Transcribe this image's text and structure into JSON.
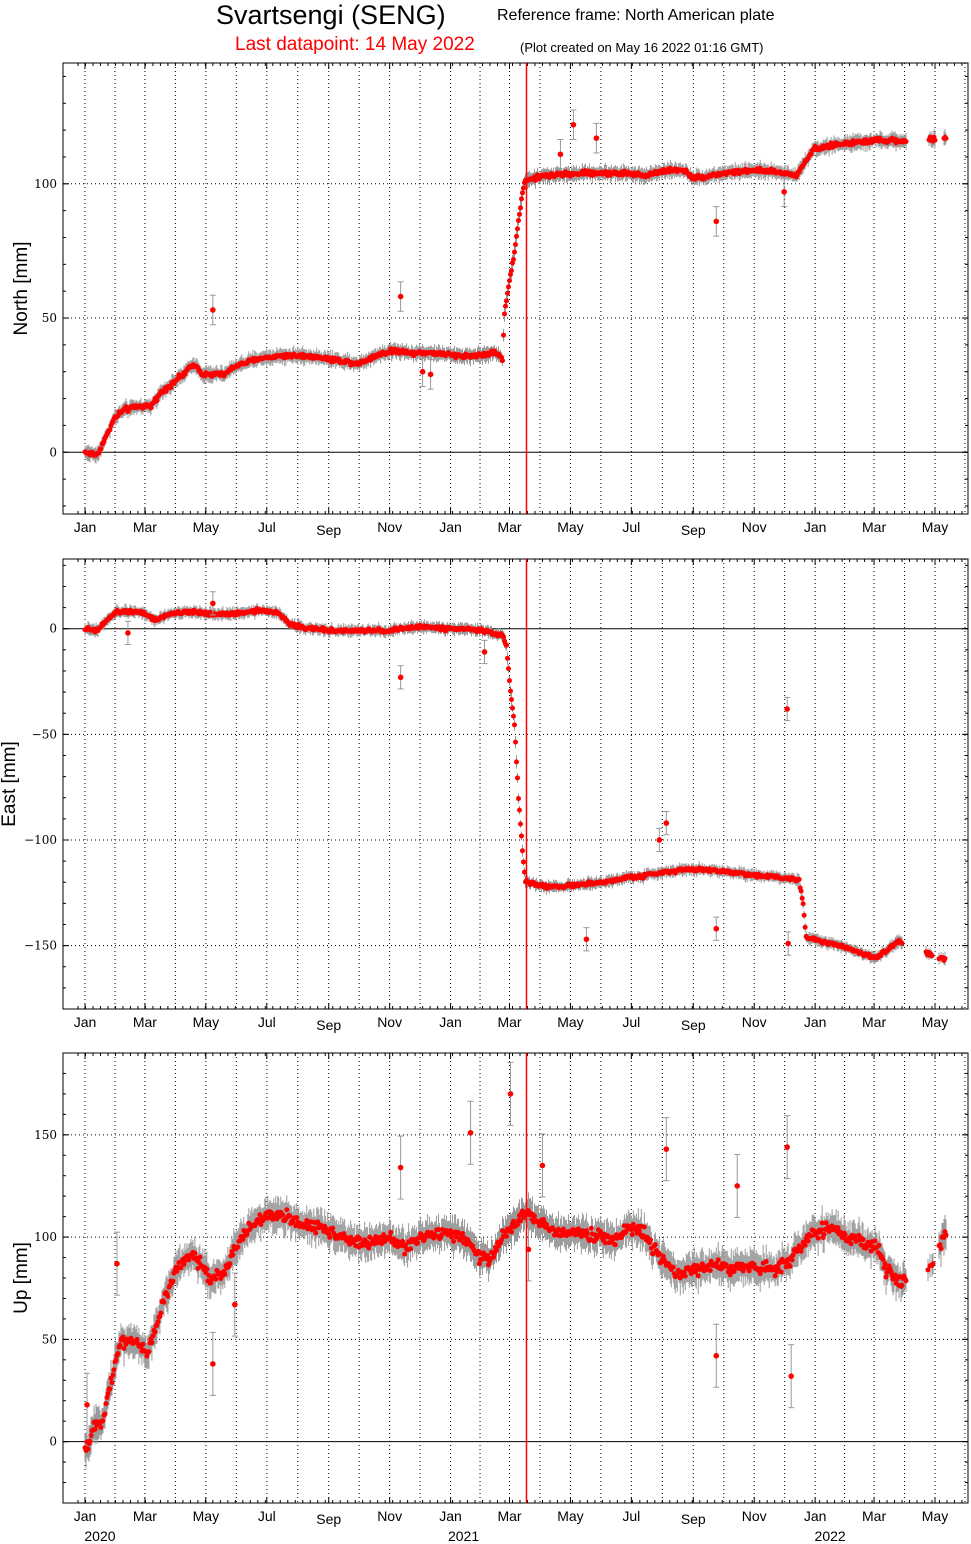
{
  "header": {
    "title": "Svartsengi (SENG)",
    "reference_frame": "Reference frame: North American plate",
    "last_datapoint": "Last datapoint: 14 May 2022",
    "created": "(Plot created on May 16 2022 01:16 GMT)"
  },
  "colors": {
    "points": "#ff0000",
    "error_bars": "#999999",
    "event_line": "#ff0000",
    "zero_line": "#000000",
    "grid": "#000000"
  },
  "chart_data": [
    {
      "type": "scatter",
      "name": "north",
      "ylabel": "North [mm]",
      "ylim": [
        -23,
        145
      ],
      "yticks": [
        0,
        50,
        100
      ],
      "ytick_labels": [
        "0",
        "50",
        "100"
      ],
      "x_unit": "days since 2020-01-01",
      "xlim": [
        -10,
        893
      ],
      "month_ticks": [
        {
          "label": "Jan",
          "day": 0
        },
        {
          "label": "Mar",
          "day": 60
        },
        {
          "label": "May",
          "day": 121
        },
        {
          "label": "Jul",
          "day": 182
        },
        {
          "label": "Sep",
          "day": 244
        },
        {
          "label": "Nov",
          "day": 305
        },
        {
          "label": "Jan",
          "day": 366
        },
        {
          "label": "Mar",
          "day": 425
        },
        {
          "label": "May",
          "day": 486
        },
        {
          "label": "Jul",
          "day": 547
        },
        {
          "label": "Sep",
          "day": 609
        },
        {
          "label": "Nov",
          "day": 670
        },
        {
          "label": "Jan",
          "day": 731
        },
        {
          "label": "Mar",
          "day": 790
        },
        {
          "label": "May",
          "day": 851
        }
      ],
      "event_line_day": 442,
      "trend": [
        [
          0,
          0
        ],
        [
          12,
          -1
        ],
        [
          20,
          5
        ],
        [
          30,
          13
        ],
        [
          40,
          16
        ],
        [
          55,
          17
        ],
        [
          66,
          17
        ],
        [
          75,
          22
        ],
        [
          95,
          28
        ],
        [
          110,
          33
        ],
        [
          118,
          29
        ],
        [
          140,
          29
        ],
        [
          150,
          32
        ],
        [
          175,
          35
        ],
        [
          200,
          36
        ],
        [
          220,
          36
        ],
        [
          240,
          35
        ],
        [
          258,
          34
        ],
        [
          275,
          33
        ],
        [
          290,
          36
        ],
        [
          310,
          38
        ],
        [
          330,
          37
        ],
        [
          350,
          37
        ],
        [
          370,
          36
        ],
        [
          390,
          36
        ],
        [
          410,
          37
        ],
        [
          418,
          35
        ],
        [
          420,
          52
        ],
        [
          424,
          62
        ],
        [
          428,
          70
        ],
        [
          432,
          80
        ],
        [
          436,
          92
        ],
        [
          440,
          101
        ],
        [
          460,
          103
        ],
        [
          500,
          104
        ],
        [
          540,
          104
        ],
        [
          560,
          103
        ],
        [
          580,
          105
        ],
        [
          600,
          105
        ],
        [
          610,
          102
        ],
        [
          640,
          104
        ],
        [
          670,
          105
        ],
        [
          700,
          104
        ],
        [
          712,
          103
        ],
        [
          720,
          108
        ],
        [
          730,
          113
        ],
        [
          760,
          115
        ],
        [
          790,
          116
        ],
        [
          800,
          116
        ],
        [
          820,
          116
        ],
        [
          860,
          117
        ],
        [
          870,
          118
        ]
      ],
      "gap_days": [
        [
          822,
          845
        ],
        [
          851,
          860
        ]
      ],
      "outliers": [
        {
          "day": 128,
          "y": 53
        },
        {
          "day": 316,
          "y": 58
        },
        {
          "day": 338,
          "y": 30
        },
        {
          "day": 476,
          "y": 111
        },
        {
          "day": 489,
          "y": 122
        },
        {
          "day": 512,
          "y": 117
        },
        {
          "day": 632,
          "y": 86
        },
        {
          "day": 700,
          "y": 97
        },
        {
          "day": 346,
          "y": 29
        }
      ]
    },
    {
      "type": "scatter",
      "name": "east",
      "ylabel": "East [mm]",
      "ylim": [
        -180,
        33
      ],
      "yticks": [
        -150,
        -100,
        -50,
        0
      ],
      "ytick_labels": [
        "−150",
        "−100",
        "−50",
        "0"
      ],
      "x_unit": "days since 2020-01-01",
      "xlim": [
        -10,
        893
      ],
      "month_ticks": [
        {
          "label": "Jan",
          "day": 0
        },
        {
          "label": "Mar",
          "day": 60
        },
        {
          "label": "May",
          "day": 121
        },
        {
          "label": "Jul",
          "day": 182
        },
        {
          "label": "Sep",
          "day": 244
        },
        {
          "label": "Nov",
          "day": 305
        },
        {
          "label": "Jan",
          "day": 366
        },
        {
          "label": "Mar",
          "day": 425
        },
        {
          "label": "May",
          "day": 486
        },
        {
          "label": "Jul",
          "day": 547
        },
        {
          "label": "Sep",
          "day": 609
        },
        {
          "label": "Nov",
          "day": 670
        },
        {
          "label": "Jan",
          "day": 731
        },
        {
          "label": "Mar",
          "day": 790
        },
        {
          "label": "May",
          "day": 851
        }
      ],
      "event_line_day": 442,
      "trend": [
        [
          0,
          0
        ],
        [
          12,
          -1
        ],
        [
          22,
          4
        ],
        [
          32,
          8
        ],
        [
          45,
          8
        ],
        [
          55,
          8
        ],
        [
          70,
          4
        ],
        [
          85,
          7
        ],
        [
          110,
          8
        ],
        [
          125,
          7
        ],
        [
          150,
          7
        ],
        [
          175,
          9
        ],
        [
          195,
          7
        ],
        [
          205,
          2
        ],
        [
          225,
          0
        ],
        [
          250,
          -1
        ],
        [
          280,
          -1
        ],
        [
          300,
          -1
        ],
        [
          320,
          0
        ],
        [
          340,
          1
        ],
        [
          360,
          0
        ],
        [
          380,
          0
        ],
        [
          400,
          -1
        ],
        [
          418,
          -3
        ],
        [
          422,
          -8
        ],
        [
          426,
          -30
        ],
        [
          430,
          -45
        ],
        [
          434,
          -80
        ],
        [
          438,
          -105
        ],
        [
          441,
          -120
        ],
        [
          460,
          -122
        ],
        [
          480,
          -122
        ],
        [
          500,
          -121
        ],
        [
          520,
          -120
        ],
        [
          540,
          -118
        ],
        [
          560,
          -117
        ],
        [
          580,
          -115
        ],
        [
          600,
          -114
        ],
        [
          620,
          -114
        ],
        [
          640,
          -115
        ],
        [
          660,
          -116
        ],
        [
          680,
          -117
        ],
        [
          700,
          -118
        ],
        [
          715,
          -119
        ],
        [
          719,
          -130
        ],
        [
          722,
          -146
        ],
        [
          740,
          -148
        ],
        [
          770,
          -152
        ],
        [
          790,
          -156
        ],
        [
          800,
          -153
        ],
        [
          815,
          -148
        ],
        [
          845,
          -154
        ],
        [
          860,
          -156
        ]
      ],
      "gap_days": [
        [
          818,
          842
        ],
        [
          848,
          855
        ]
      ],
      "outliers": [
        {
          "day": 43,
          "y": -2
        },
        {
          "day": 128,
          "y": 12
        },
        {
          "day": 316,
          "y": -23
        },
        {
          "day": 400,
          "y": -11
        },
        {
          "day": 502,
          "y": -147
        },
        {
          "day": 575,
          "y": -100
        },
        {
          "day": 582,
          "y": -92
        },
        {
          "day": 632,
          "y": -142
        },
        {
          "day": 703,
          "y": -38
        },
        {
          "day": 704,
          "y": -149
        }
      ]
    },
    {
      "type": "scatter",
      "name": "up",
      "ylabel": "Up [mm]",
      "ylim": [
        -30,
        190
      ],
      "yticks": [
        0,
        50,
        100,
        150
      ],
      "ytick_labels": [
        "0",
        "50",
        "100",
        "150"
      ],
      "x_unit": "days since 2020-01-01",
      "xlim": [
        -10,
        893
      ],
      "month_ticks": [
        {
          "label": "Jan",
          "day": 0
        },
        {
          "label": "Mar",
          "day": 60
        },
        {
          "label": "May",
          "day": 121
        },
        {
          "label": "Jul",
          "day": 182
        },
        {
          "label": "Sep",
          "day": 244
        },
        {
          "label": "Nov",
          "day": 305
        },
        {
          "label": "Jan",
          "day": 366
        },
        {
          "label": "Mar",
          "day": 425
        },
        {
          "label": "May",
          "day": 486
        },
        {
          "label": "Jul",
          "day": 547
        },
        {
          "label": "Sep",
          "day": 609
        },
        {
          "label": "Nov",
          "day": 670
        },
        {
          "label": "Jan",
          "day": 731
        },
        {
          "label": "Mar",
          "day": 790
        },
        {
          "label": "May",
          "day": 851
        }
      ],
      "year_labels": [
        {
          "label": "2020",
          "day": 15
        },
        {
          "label": "2021",
          "day": 379
        },
        {
          "label": "2022",
          "day": 746
        }
      ],
      "event_line_day": 442,
      "trend": [
        [
          0,
          -5
        ],
        [
          8,
          5
        ],
        [
          18,
          12
        ],
        [
          26,
          30
        ],
        [
          35,
          48
        ],
        [
          45,
          50
        ],
        [
          55,
          47
        ],
        [
          62,
          43
        ],
        [
          70,
          55
        ],
        [
          80,
          70
        ],
        [
          92,
          85
        ],
        [
          102,
          90
        ],
        [
          115,
          88
        ],
        [
          125,
          80
        ],
        [
          140,
          83
        ],
        [
          150,
          95
        ],
        [
          165,
          105
        ],
        [
          180,
          110
        ],
        [
          200,
          110
        ],
        [
          220,
          106
        ],
        [
          240,
          104
        ],
        [
          260,
          100
        ],
        [
          280,
          96
        ],
        [
          300,
          100
        ],
        [
          320,
          95
        ],
        [
          340,
          100
        ],
        [
          360,
          103
        ],
        [
          380,
          100
        ],
        [
          395,
          90
        ],
        [
          405,
          88
        ],
        [
          420,
          102
        ],
        [
          440,
          112
        ],
        [
          455,
          107
        ],
        [
          470,
          102
        ],
        [
          490,
          103
        ],
        [
          510,
          101
        ],
        [
          530,
          98
        ],
        [
          545,
          105
        ],
        [
          560,
          102
        ],
        [
          575,
          90
        ],
        [
          590,
          82
        ],
        [
          610,
          84
        ],
        [
          630,
          86
        ],
        [
          650,
          85
        ],
        [
          670,
          85
        ],
        [
          690,
          85
        ],
        [
          705,
          88
        ],
        [
          715,
          95
        ],
        [
          730,
          102
        ],
        [
          745,
          105
        ],
        [
          760,
          100
        ],
        [
          780,
          97
        ],
        [
          795,
          95
        ],
        [
          800,
          85
        ],
        [
          815,
          78
        ],
        [
          845,
          85
        ],
        [
          860,
          100
        ],
        [
          865,
          108
        ]
      ],
      "gap_days": [
        [
          822,
          843
        ],
        [
          849,
          855
        ]
      ],
      "outliers": [
        {
          "day": 2,
          "y": 18
        },
        {
          "day": 32,
          "y": 87
        },
        {
          "day": 128,
          "y": 38
        },
        {
          "day": 316,
          "y": 134
        },
        {
          "day": 386,
          "y": 151
        },
        {
          "day": 426,
          "y": 170
        },
        {
          "day": 444,
          "y": 94
        },
        {
          "day": 458,
          "y": 135
        },
        {
          "day": 582,
          "y": 143
        },
        {
          "day": 632,
          "y": 42
        },
        {
          "day": 653,
          "y": 125
        },
        {
          "day": 703,
          "y": 144
        },
        {
          "day": 707,
          "y": 32
        },
        {
          "day": 150,
          "y": 67
        }
      ]
    }
  ]
}
